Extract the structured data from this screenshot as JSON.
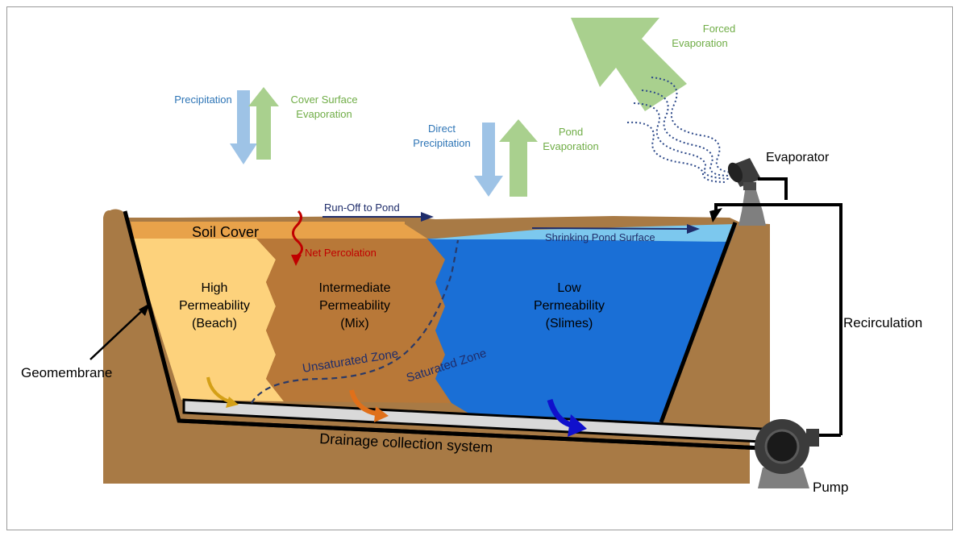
{
  "colors": {
    "earth": "#a87a45",
    "soil_cover": "#e8a24a",
    "high_perm": "#fdd27c",
    "intermediate": "#b87838",
    "low_perm": "#1a6fd6",
    "pond_surface": "#7cc8ee",
    "precip_arrow": "#9ec3e6",
    "evap_arrow": "#a9d08e",
    "drain_pipe": "#d9d9d9",
    "blue_text": "#2e75b6",
    "red_text": "#c00000",
    "navy": "#1f2d6b"
  },
  "labels": {
    "forced_evaporation_1": "Forced",
    "forced_evaporation_2": "Evaporation",
    "precipitation": "Precipitation",
    "cover_surface_1": "Cover Surface",
    "cover_surface_2": "Evaporation",
    "direct_precip_1": "Direct",
    "direct_precip_2": "Precipitation",
    "pond_evap_1": "Pond",
    "pond_evap_2": "Evaporation",
    "evaporator": "Evaporator",
    "run_off": "Run-Off to Pond",
    "shrinking_pond": "Shrinking Pond Surface",
    "soil_cover": "Soil Cover",
    "net_percolation": "Net Percolation",
    "high_1": "High",
    "high_2": "Permeability",
    "high_3": "(Beach)",
    "inter_1": "Intermediate",
    "inter_2": "Permeability",
    "inter_3": "(Mix)",
    "low_1": "Low",
    "low_2": "Permeability",
    "low_3": "(Slimes)",
    "unsaturated": "Unsaturated Zone",
    "saturated": "Saturated Zone",
    "geomembrane": "Geomembrane",
    "recirculation": "Recirculation",
    "drainage": "Drainage collection system",
    "pump": "Pump"
  },
  "icons": {
    "evaporator": "evaporator-icon",
    "pump": "pump-icon"
  }
}
